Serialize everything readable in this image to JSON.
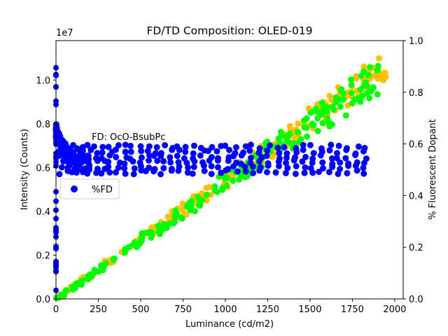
{
  "chart_data": {
    "type": "scatter",
    "title": "FD/TD Composition: OLED-019",
    "xlabel": "Luminance (cd/m2)",
    "ylabel": "Intensity (Counts)",
    "y2label": "% Fluorescent Dopant",
    "y_offset_label": "1e7",
    "xlim": [
      0,
      2050
    ],
    "ylim": [
      0,
      11.8
    ],
    "y2lim": [
      0,
      1.0
    ],
    "x_ticks": [
      0,
      250,
      500,
      750,
      1000,
      1250,
      1500,
      1750,
      2000
    ],
    "y_ticks": [
      0.0,
      0.2,
      0.4,
      0.6,
      0.8,
      1.0
    ],
    "y_tick_values": [
      0,
      2,
      4,
      6,
      8,
      10
    ],
    "y2_ticks": [
      0.0,
      0.2,
      0.4,
      0.6,
      0.8,
      1.0
    ],
    "grid": false,
    "legend_placement": "center-left",
    "series": [
      {
        "name": "",
        "axis": "left",
        "color": "#ffc000",
        "x_max": 1950,
        "y_end": 11.3,
        "spread": 1.1
      },
      {
        "name": "",
        "axis": "left",
        "color": "#00ff00",
        "x_max": 1950,
        "y_end": 11.2,
        "spread": 1.3
      },
      {
        "name": "%FD",
        "axis": "right",
        "color": "#0000ff",
        "rows": [
          0.49,
          0.51,
          0.53,
          0.55,
          0.57,
          0.59
        ],
        "annotation": "FD: OcO-BsubPc"
      }
    ],
    "legend": [
      {
        "label": "%FD",
        "color": "#0000ff"
      }
    ]
  }
}
